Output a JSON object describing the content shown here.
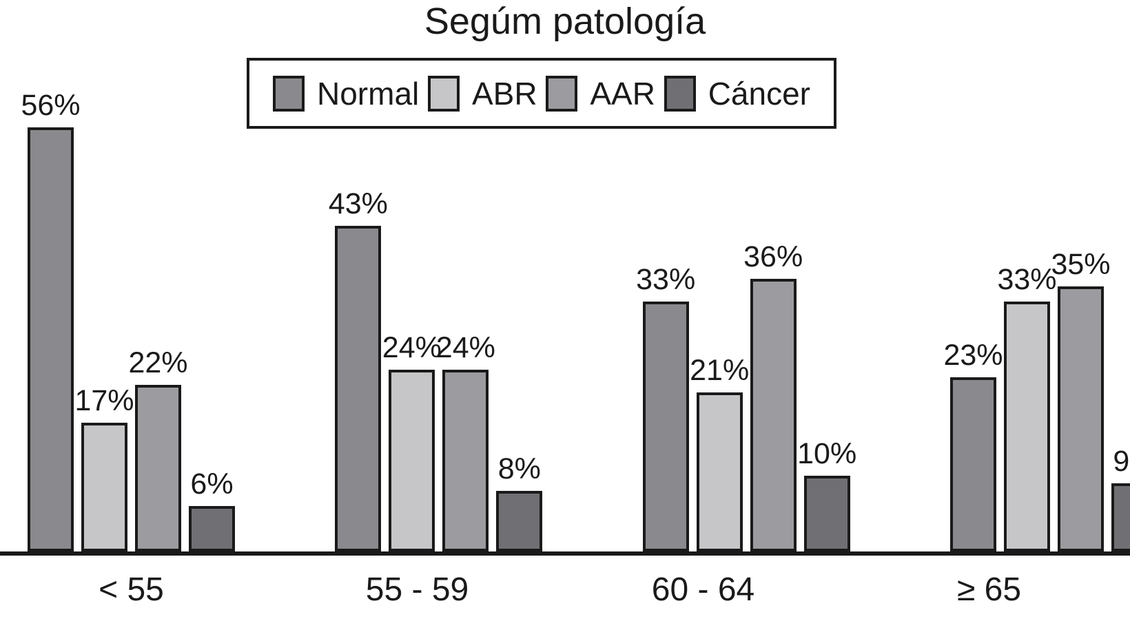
{
  "title": "Segúm patología",
  "colors": {
    "axis": "#1a1a1a",
    "background": "#ffffff"
  },
  "chart_data": {
    "type": "bar",
    "title": "Segúm patología",
    "categories": [
      "< 55",
      "55 - 59",
      "60 - 64",
      "≥ 65"
    ],
    "series": [
      {
        "name": "Normal",
        "color": "#8a8a8e",
        "values": [
          56,
          43,
          33,
          23
        ]
      },
      {
        "name": "ABR",
        "color": "#c6c6c8",
        "values": [
          17,
          24,
          21,
          33
        ]
      },
      {
        "name": "AAR",
        "color": "#9c9ca0",
        "values": [
          22,
          24,
          36,
          35
        ]
      },
      {
        "name": "Cáncer",
        "color": "#707074",
        "values": [
          6,
          8,
          10,
          9
        ]
      }
    ],
    "value_suffix": "%",
    "ylim": [
      0,
      60
    ],
    "grid": false,
    "legend_position": "top",
    "xlabel": "",
    "ylabel": ""
  }
}
